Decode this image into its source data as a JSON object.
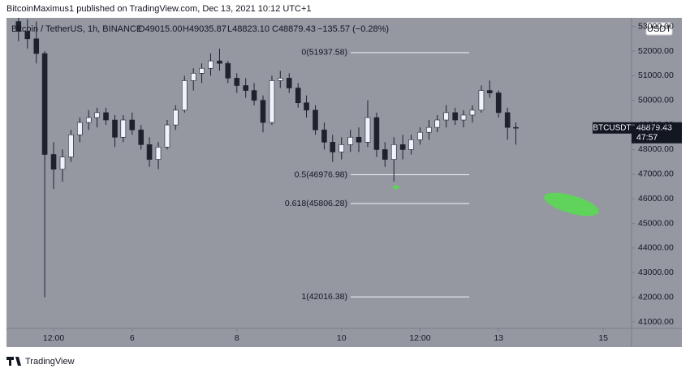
{
  "header": "BitcoinMaximus1 published on TradingView.com, Dec 13, 2021 10:12 UTC+1",
  "footer": "TradingView",
  "chart_data": {
    "type": "candlestick",
    "legend": {
      "symbol": "Bitcoin / TetherUS, 1h, BINANCE",
      "open": "O49015.00",
      "high": "H49035.87",
      "low": "L48823.10",
      "close": "C48879.43",
      "change": "−135.57 (−0.28%)"
    },
    "currency": "USDT",
    "ticker": "BTCUSDT",
    "countdown": "47:57",
    "up_color": "#f0f3fa",
    "down_color": "#1e222d",
    "background": "#9598a1",
    "x": [
      3.83,
      4.0,
      4.17,
      4.33,
      4.5,
      4.67,
      4.83,
      5.0,
      5.17,
      5.33,
      5.5,
      5.67,
      5.83,
      6.0,
      6.17,
      6.33,
      6.5,
      6.67,
      6.83,
      7.0,
      7.17,
      7.33,
      7.5,
      7.67,
      7.83,
      8.0,
      8.17,
      8.33,
      8.5,
      8.67,
      8.83,
      9.0,
      9.17,
      9.33,
      9.5,
      9.67,
      9.83,
      10.0,
      10.17,
      10.33,
      10.5,
      10.67,
      10.83,
      11.0,
      11.17,
      11.33,
      11.5,
      11.67,
      11.83,
      12.0,
      12.17,
      12.33,
      12.5,
      12.67,
      12.83,
      13.0,
      13.17,
      13.33
    ],
    "open": [
      53200,
      52800,
      52500,
      51900,
      47800,
      47200,
      47700,
      48600,
      49100,
      49300,
      49500,
      49200,
      48500,
      49200,
      48800,
      48200,
      47600,
      48100,
      49000,
      49600,
      50800,
      51100,
      51300,
      51600,
      51500,
      50900,
      50600,
      50400,
      50000,
      49100,
      50800,
      50900,
      50500,
      49900,
      49600,
      48800,
      48300,
      47900,
      48200,
      48500,
      48300,
      49300,
      48000,
      47600,
      48200,
      48000,
      48400,
      48700,
      48900,
      49200,
      49500,
      49200,
      49400,
      49600,
      50400,
      50300,
      49500,
      48900
    ],
    "high": [
      53600,
      53300,
      53200,
      52000,
      48300,
      48000,
      48800,
      49300,
      49600,
      49700,
      49700,
      49400,
      49400,
      49500,
      49000,
      48500,
      48300,
      49200,
      49800,
      51000,
      51300,
      51500,
      51900,
      52100,
      51600,
      51100,
      50900,
      50700,
      50200,
      51000,
      51200,
      51100,
      50700,
      50200,
      49800,
      49100,
      48600,
      48500,
      48800,
      48900,
      50000,
      49500,
      48300,
      48500,
      48600,
      48600,
      48900,
      49200,
      49400,
      49800,
      49700,
      49600,
      49800,
      50600,
      50800,
      50400,
      49700,
      49100
    ],
    "low": [
      52400,
      52100,
      51500,
      42000,
      46400,
      46700,
      47500,
      48300,
      48800,
      48900,
      49000,
      48100,
      48300,
      48600,
      48000,
      47300,
      47200,
      48000,
      48800,
      49500,
      50400,
      50700,
      51000,
      51200,
      50700,
      50300,
      50100,
      49800,
      48700,
      49000,
      50500,
      50300,
      49700,
      49300,
      48600,
      48000,
      47500,
      47600,
      47900,
      47900,
      48100,
      47700,
      47300,
      46700,
      47600,
      47800,
      48200,
      48400,
      48700,
      48900,
      49000,
      48900,
      49100,
      49500,
      50100,
      49300,
      48400,
      48200
    ],
    "close": [
      52800,
      52500,
      51900,
      47800,
      47200,
      47700,
      48600,
      49100,
      49300,
      49500,
      49200,
      48500,
      49200,
      48800,
      48200,
      47600,
      48100,
      49000,
      49600,
      50800,
      51100,
      51300,
      51600,
      51500,
      50900,
      50600,
      50400,
      50000,
      49100,
      50800,
      50900,
      50500,
      49900,
      49600,
      48800,
      48300,
      47900,
      48200,
      48500,
      48300,
      49300,
      48000,
      47600,
      48200,
      48000,
      48400,
      48700,
      48900,
      49200,
      49500,
      49200,
      49400,
      49600,
      50400,
      50300,
      49500,
      48900,
      48879.43
    ],
    "fib_levels": [
      {
        "value": 51937.58,
        "label": "0(51937.58)"
      },
      {
        "value": 46976.98,
        "label": "0.5(46976.98)"
      },
      {
        "value": 45806.28,
        "label": "0.618(45806.28)"
      },
      {
        "value": 42016.38,
        "label": "1(42016.38)"
      }
    ],
    "xlim": [
      3.6,
      15.54
    ],
    "xticks": [
      {
        "value": 4.5,
        "label": "12:00"
      },
      6,
      8,
      10,
      {
        "value": 11.5,
        "label": "12:00"
      },
      13,
      15
    ],
    "ylim": [
      40736,
      53350
    ],
    "yticks": [
      {
        "value": 41000,
        "label": "41000.00"
      },
      {
        "value": 42000,
        "label": "42000.00"
      },
      {
        "value": 43000,
        "label": "43000.00"
      },
      {
        "value": 44000,
        "label": "44000.00"
      },
      {
        "value": 45000,
        "label": "45000.00"
      },
      {
        "value": 46000,
        "label": "46000.00"
      },
      {
        "value": 47000,
        "label": "47000.00"
      },
      {
        "value": 48000,
        "label": "48000.00"
      },
      {
        "value": 49000,
        "label": "49000.00"
      },
      {
        "value": 50000,
        "label": "50000.00"
      },
      {
        "value": 51000,
        "label": "51000.00"
      },
      {
        "value": 52000,
        "label": "52000.00"
      },
      {
        "value": 53000,
        "label": "53000.00"
      }
    ]
  }
}
